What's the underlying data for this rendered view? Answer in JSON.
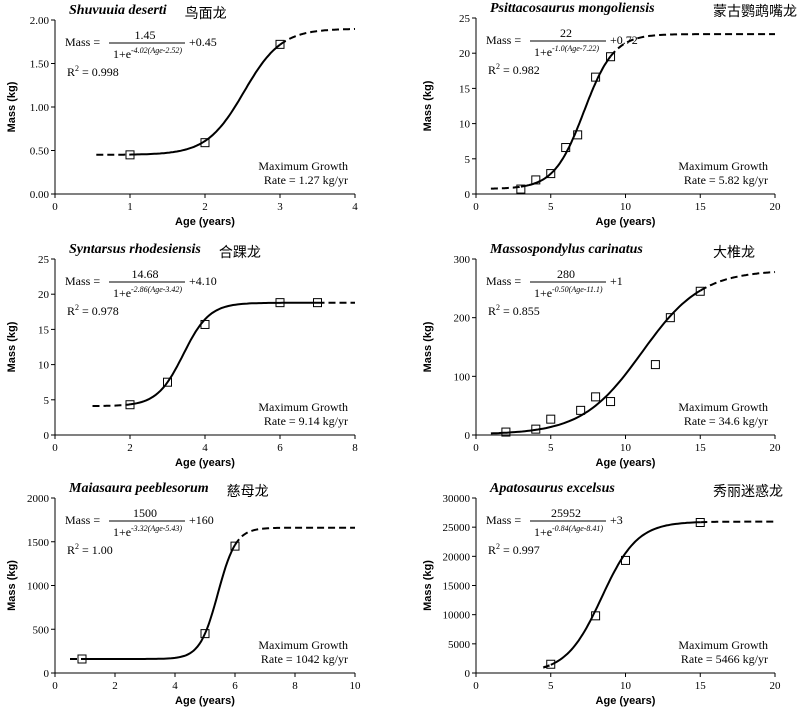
{
  "chart_data": [
    {
      "type": "line",
      "title": "Shuvuuia deserti",
      "title_cn": "鸟面龙",
      "xlabel": "Age (years)",
      "ylabel": "Mass (kg)",
      "xlim": [
        0,
        4
      ],
      "ylim": [
        0,
        2
      ],
      "xticks": [
        "0",
        "1",
        "2",
        "3",
        "4"
      ],
      "yticks": [
        "0.00",
        "0.50",
        "1.00",
        "1.50",
        "2.00"
      ],
      "fit": {
        "A": 1.45,
        "k": 4.02,
        "t0": 2.52,
        "c": 0.45,
        "solid": [
          1,
          3
        ],
        "dashed": [
          [
            0.55,
            1
          ],
          [
            3,
            4
          ]
        ]
      },
      "eq_num": "1.45",
      "eq_exp": "-4.02(Age-2.52)",
      "eq_add": "+0.45",
      "r2": "= 0.998",
      "growth1": "Maximum Growth",
      "growth2": "Rate = 1.27 kg/yr",
      "points": {
        "x": [
          1,
          2,
          3
        ],
        "y": [
          0.45,
          0.59,
          1.72
        ]
      }
    },
    {
      "type": "line",
      "title": "Psittacosaurus mongoliensis",
      "title_cn": "蒙古鹦鹉嘴龙",
      "xlabel": "Age (years)",
      "ylabel": "Mass (kg)",
      "xlim": [
        0,
        20
      ],
      "ylim": [
        0,
        25
      ],
      "xticks": [
        "0",
        "5",
        "10",
        "15",
        "20"
      ],
      "yticks": [
        "0",
        "5",
        "10",
        "15",
        "20",
        "25"
      ],
      "fit": {
        "A": 22,
        "k": 1.0,
        "t0": 7.22,
        "c": 0.72,
        "solid": [
          3,
          9
        ],
        "dashed": [
          [
            1,
            3
          ],
          [
            9,
            20
          ]
        ]
      },
      "eq_num": "22",
      "eq_exp": "-1.0(Age-7.22)",
      "eq_add": "+0.72",
      "r2": "= 0.982",
      "growth1": "Maximum Growth",
      "growth2": "Rate = 5.82 kg/yr",
      "points": {
        "x": [
          3,
          4,
          5,
          6,
          6.8,
          8,
          9
        ],
        "y": [
          0.7,
          2,
          2.9,
          6.6,
          8.4,
          16.6,
          19.5
        ]
      }
    },
    {
      "type": "line",
      "title": "Syntarsus rhodesiensis",
      "title_cn": "合踝龙",
      "xlabel": "Age (years)",
      "ylabel": "Mass (kg)",
      "xlim": [
        0,
        8
      ],
      "ylim": [
        0,
        25
      ],
      "xticks": [
        "0",
        "2",
        "4",
        "6",
        "8"
      ],
      "yticks": [
        "0",
        "5",
        "10",
        "15",
        "20",
        "25"
      ],
      "fit": {
        "A": 14.68,
        "k": 2.86,
        "t0": 3.42,
        "c": 4.1,
        "solid": [
          2,
          7
        ],
        "dashed": [
          [
            1,
            2
          ],
          [
            7,
            8
          ]
        ]
      },
      "eq_num": "14.68",
      "eq_exp": "-2.86(Age-3.42)",
      "eq_add": "+4.10",
      "r2": "= 0.978",
      "growth1": "Maximum Growth",
      "growth2": "Rate = 9.14 kg/yr",
      "points": {
        "x": [
          2,
          3,
          4,
          6,
          7
        ],
        "y": [
          4.3,
          7.5,
          15.7,
          18.8,
          18.8
        ]
      }
    },
    {
      "type": "line",
      "title": "Massospondylus carinatus",
      "title_cn": "大椎龙",
      "xlabel": "Age (years)",
      "ylabel": "Mass (kg)",
      "xlim": [
        0,
        20
      ],
      "ylim": [
        0,
        300
      ],
      "xticks": [
        "0",
        "5",
        "10",
        "15",
        "20"
      ],
      "yticks": [
        "0",
        "100",
        "200",
        "300"
      ],
      "fit": {
        "A": 280,
        "k": 0.5,
        "t0": 11.1,
        "c": 1,
        "solid": [
          1,
          15
        ],
        "dashed": [
          [
            15,
            20
          ]
        ]
      },
      "eq_num": "280",
      "eq_exp": "-0.50(Age-11.1)",
      "eq_add": "+1",
      "r2": "= 0.855",
      "growth1": "Maximum Growth",
      "growth2": "Rate = 34.6 kg/yr",
      "points": {
        "x": [
          2,
          4,
          5,
          7,
          8,
          9,
          12,
          13,
          15
        ],
        "y": [
          5,
          10,
          27,
          42,
          65,
          57,
          120,
          200,
          245
        ]
      }
    },
    {
      "type": "line",
      "title": "Maiasaura peeblesorum",
      "title_cn": "慈母龙",
      "xlabel": "Age (years)",
      "ylabel": "Mass (kg)",
      "xlim": [
        0,
        10
      ],
      "ylim": [
        0,
        2000
      ],
      "xticks": [
        "0",
        "2",
        "4",
        "6",
        "8",
        "10"
      ],
      "yticks": [
        "0",
        "500",
        "1000",
        "1500",
        "2000"
      ],
      "fit": {
        "A": 1500,
        "k": 3.32,
        "t0": 5.43,
        "c": 160,
        "solid": [
          1,
          6
        ],
        "dashed": [
          [
            0.5,
            1
          ],
          [
            6,
            10
          ]
        ]
      },
      "eq_num": "1500",
      "eq_exp": "-3.32(Age-5.43)",
      "eq_add": "+160",
      "r2": "= 1.00",
      "growth1": "Maximum Growth",
      "growth2": "Rate = 1042 kg/yr",
      "points": {
        "x": [
          0.9,
          5,
          6
        ],
        "y": [
          160,
          450,
          1450
        ]
      }
    },
    {
      "type": "line",
      "title": "Apatosaurus excelsus",
      "title_cn": "秀丽迷惑龙",
      "xlabel": "Age (years)",
      "ylabel": "Mass (kg)",
      "xlim": [
        0,
        20
      ],
      "ylim": [
        0,
        30000
      ],
      "xticks": [
        "0",
        "5",
        "10",
        "15",
        "20"
      ],
      "yticks": [
        "0",
        "5000",
        "10000",
        "15000",
        "20000",
        "25000",
        "30000"
      ],
      "fit": {
        "A": 25952,
        "k": 0.84,
        "t0": 8.41,
        "c": 3,
        "solid": [
          5,
          15
        ],
        "dashed": [
          [
            4.5,
            5
          ],
          [
            15,
            20
          ]
        ]
      },
      "eq_num": "25952",
      "eq_exp": "-0.84(Age-8.41)",
      "eq_add": "+3",
      "r2": "= 0.997",
      "growth1": "Maximum Growth",
      "growth2": "Rate = 5466 kg/yr",
      "points": {
        "x": [
          5,
          8,
          10,
          15
        ],
        "y": [
          1500,
          9800,
          19300,
          25800
        ]
      }
    }
  ],
  "labels": {
    "mass": "Mass =",
    "r": "R"
  }
}
